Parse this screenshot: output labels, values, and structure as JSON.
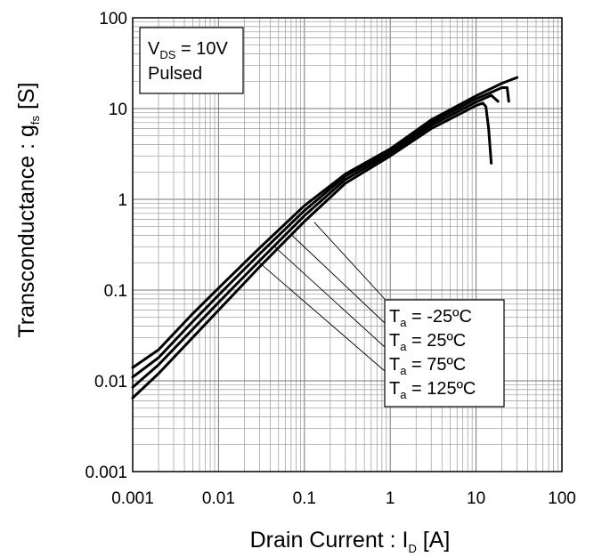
{
  "chart_data": {
    "type": "line",
    "xscale": "log",
    "yscale": "log",
    "xlim": [
      0.001,
      100
    ],
    "ylim": [
      0.001,
      100
    ],
    "grid": true,
    "xlabel": {
      "main": "Drain Current : I",
      "sub": "D",
      "unit": " [A]"
    },
    "ylabel": {
      "main": "Transconductance : g",
      "sub": "fs",
      "unit": " [S]"
    },
    "x_ticks": [
      "0.001",
      "0.01",
      "0.1",
      "1",
      "10",
      "100"
    ],
    "y_ticks": [
      "0.001",
      "0.01",
      "0.1",
      "1",
      "10",
      "100"
    ],
    "conditions": [
      {
        "main": "V",
        "sub": "DS",
        "rest": " = 10V"
      },
      {
        "main": "Pulsed",
        "sub": "",
        "rest": ""
      }
    ],
    "legend_placement": "lower-right",
    "series": [
      {
        "name": {
          "main": "T",
          "sub": "a",
          "rest": " = -25ºC"
        },
        "points": [
          [
            0.001,
            0.014
          ],
          [
            0.002,
            0.022
          ],
          [
            0.005,
            0.055
          ],
          [
            0.01,
            0.105
          ],
          [
            0.03,
            0.29
          ],
          [
            0.1,
            0.85
          ],
          [
            0.3,
            1.9
          ],
          [
            1,
            3.6
          ],
          [
            3,
            7.5
          ],
          [
            10,
            13.8
          ],
          [
            20,
            19
          ],
          [
            30,
            22
          ]
        ]
      },
      {
        "name": {
          "main": "T",
          "sub": "a",
          "rest": " = 25ºC"
        },
        "points": [
          [
            0.001,
            0.011
          ],
          [
            0.002,
            0.018
          ],
          [
            0.005,
            0.045
          ],
          [
            0.01,
            0.088
          ],
          [
            0.03,
            0.25
          ],
          [
            0.1,
            0.75
          ],
          [
            0.3,
            1.8
          ],
          [
            1,
            3.4
          ],
          [
            3,
            7.0
          ],
          [
            10,
            12.8
          ],
          [
            20,
            17
          ],
          [
            23,
            17
          ],
          [
            24,
            12
          ]
        ]
      },
      {
        "name": {
          "main": "T",
          "sub": "a",
          "rest": " = 75ºC"
        },
        "points": [
          [
            0.001,
            0.0085
          ],
          [
            0.002,
            0.015
          ],
          [
            0.005,
            0.037
          ],
          [
            0.01,
            0.073
          ],
          [
            0.03,
            0.21
          ],
          [
            0.1,
            0.66
          ],
          [
            0.3,
            1.65
          ],
          [
            1,
            3.2
          ],
          [
            3,
            6.5
          ],
          [
            10,
            11.8
          ],
          [
            15,
            14
          ],
          [
            18,
            12
          ]
        ]
      },
      {
        "name": {
          "main": "T",
          "sub": "a",
          "rest": " = 125ºC"
        },
        "points": [
          [
            0.001,
            0.0065
          ],
          [
            0.002,
            0.012
          ],
          [
            0.005,
            0.03
          ],
          [
            0.01,
            0.06
          ],
          [
            0.03,
            0.18
          ],
          [
            0.1,
            0.57
          ],
          [
            0.3,
            1.5
          ],
          [
            1,
            3.0
          ],
          [
            3,
            6.0
          ],
          [
            10,
            10.8
          ],
          [
            12,
            11.5
          ],
          [
            13,
            10.5
          ],
          [
            14,
            6
          ],
          [
            15,
            2.5
          ]
        ]
      }
    ],
    "legend_leader_origins": [
      [
        0.13,
        0.56
      ],
      [
        0.07,
        0.41
      ],
      [
        0.045,
        0.3
      ],
      [
        0.03,
        0.2
      ]
    ]
  }
}
